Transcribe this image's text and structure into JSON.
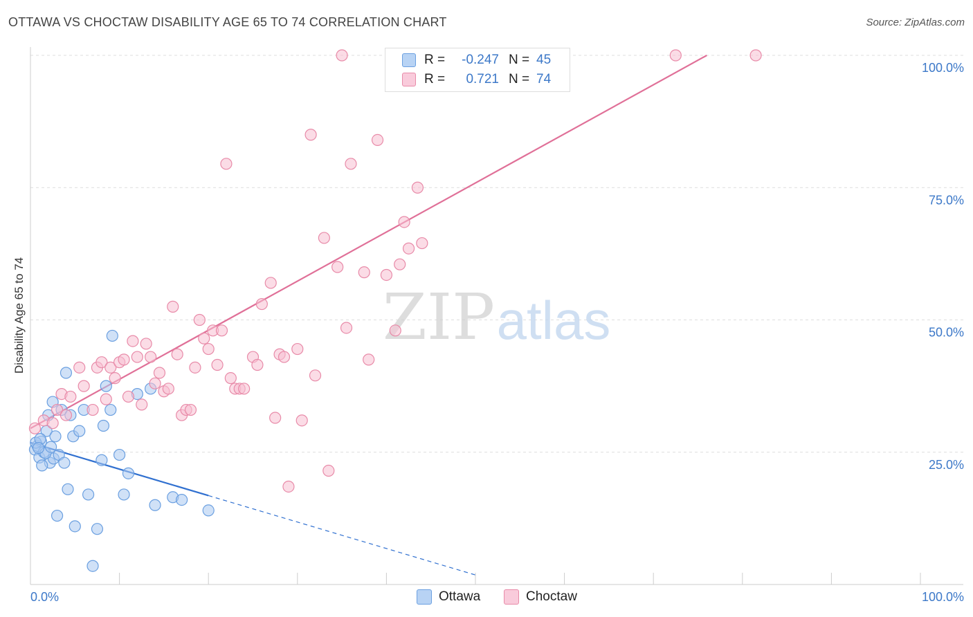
{
  "title": "OTTAWA VS CHOCTAW DISABILITY AGE 65 TO 74 CORRELATION CHART",
  "source": "Source: ZipAtlas.com",
  "watermark": {
    "zip": "ZIP",
    "atlas": "atlas"
  },
  "legend": {
    "rows": [
      {
        "r_label": "R =",
        "r_value": "-0.247",
        "n_label": "N =",
        "n_value": "45"
      },
      {
        "r_label": "R =",
        "r_value": "0.721",
        "n_label": "N =",
        "n_value": "74"
      }
    ]
  },
  "bottom_legend": {
    "ottawa": "Ottawa",
    "choctaw": "Choctaw"
  },
  "colors": {
    "ottawa_fill": "#a9c8f0",
    "ottawa_stroke": "#6a9fe0",
    "ottawa_line": "#3070d0",
    "choctaw_fill": "#f7c0d2",
    "choctaw_stroke": "#e88aa8",
    "choctaw_line": "#e07098",
    "tick_text": "#3c78c8",
    "grid": "#dddddd"
  },
  "chart_data": {
    "type": "scatter",
    "title": "OTTAWA VS CHOCTAW DISABILITY AGE 65 TO 74 CORRELATION CHART",
    "xlabel": "",
    "ylabel": "Disability Age 65 to 74",
    "xlim": [
      0,
      100
    ],
    "ylim": [
      0,
      100
    ],
    "x_tick_labels": [
      {
        "value": 0,
        "label": "0.0%"
      },
      {
        "value": 100,
        "label": "100.0%"
      }
    ],
    "y_tick_labels": [
      {
        "value": 25,
        "label": "25.0%"
      },
      {
        "value": 50,
        "label": "50.0%"
      },
      {
        "value": 75,
        "label": "75.0%"
      },
      {
        "value": 100,
        "label": "100.0%"
      }
    ],
    "series": [
      {
        "name": "Ottawa",
        "R": -0.247,
        "N": 45,
        "trend": {
          "x0": 0,
          "y0": 26.8,
          "x1": 20,
          "y1": 16.8,
          "dashed_to_x": 50
        },
        "points": [
          [
            0.5,
            25.5
          ],
          [
            0.8,
            26.2
          ],
          [
            1.0,
            24.0
          ],
          [
            1.2,
            27.0
          ],
          [
            1.5,
            25.0
          ],
          [
            1.8,
            29.0
          ],
          [
            2.0,
            32.0
          ],
          [
            2.2,
            23.0
          ],
          [
            2.5,
            34.5
          ],
          [
            2.6,
            23.8
          ],
          [
            2.8,
            28.0
          ],
          [
            3.0,
            13.0
          ],
          [
            3.2,
            24.5
          ],
          [
            3.5,
            33.0
          ],
          [
            3.8,
            23.0
          ],
          [
            4.0,
            40.0
          ],
          [
            4.2,
            18.0
          ],
          [
            4.5,
            32.0
          ],
          [
            4.8,
            28.0
          ],
          [
            5.0,
            11.0
          ],
          [
            5.5,
            29.0
          ],
          [
            6.0,
            33.0
          ],
          [
            6.5,
            17.0
          ],
          [
            7.0,
            3.5
          ],
          [
            7.5,
            10.5
          ],
          [
            8.0,
            23.5
          ],
          [
            8.2,
            30.0
          ],
          [
            8.5,
            37.5
          ],
          [
            9.0,
            33.0
          ],
          [
            9.2,
            47.0
          ],
          [
            10.0,
            24.5
          ],
          [
            10.5,
            17.0
          ],
          [
            11.0,
            21.0
          ],
          [
            12.0,
            36.0
          ],
          [
            13.5,
            37.0
          ],
          [
            14.0,
            15.0
          ],
          [
            16.0,
            16.5
          ],
          [
            17.0,
            16.0
          ],
          [
            20.0,
            14.0
          ],
          [
            1.3,
            22.5
          ],
          [
            1.7,
            24.8
          ],
          [
            0.6,
            26.8
          ],
          [
            2.3,
            26.0
          ],
          [
            1.1,
            27.5
          ],
          [
            0.9,
            25.8
          ]
        ]
      },
      {
        "name": "Choctaw",
        "R": 0.721,
        "N": 74,
        "trend": {
          "x0": 0,
          "y0": 29.5,
          "x1": 76,
          "y1": 100
        },
        "points": [
          [
            0.5,
            29.5
          ],
          [
            1.5,
            31.0
          ],
          [
            2.5,
            30.5
          ],
          [
            3.0,
            33.0
          ],
          [
            3.5,
            36.0
          ],
          [
            4.0,
            32.0
          ],
          [
            4.5,
            35.5
          ],
          [
            5.5,
            41.0
          ],
          [
            6.0,
            37.5
          ],
          [
            7.0,
            33.0
          ],
          [
            7.5,
            41.0
          ],
          [
            8.0,
            42.0
          ],
          [
            8.5,
            35.0
          ],
          [
            9.0,
            41.0
          ],
          [
            9.5,
            39.0
          ],
          [
            10.0,
            42.0
          ],
          [
            10.5,
            42.5
          ],
          [
            11.0,
            35.5
          ],
          [
            11.5,
            46.0
          ],
          [
            12.0,
            43.0
          ],
          [
            12.5,
            34.0
          ],
          [
            13.0,
            45.5
          ],
          [
            13.5,
            43.0
          ],
          [
            14.0,
            38.0
          ],
          [
            14.5,
            40.0
          ],
          [
            15.0,
            36.5
          ],
          [
            15.5,
            37.0
          ],
          [
            16.0,
            52.5
          ],
          [
            16.5,
            43.5
          ],
          [
            17.0,
            32.0
          ],
          [
            17.5,
            33.0
          ],
          [
            18.0,
            33.0
          ],
          [
            18.5,
            41.0
          ],
          [
            19.0,
            50.0
          ],
          [
            19.5,
            46.5
          ],
          [
            20.0,
            44.5
          ],
          [
            20.5,
            48.0
          ],
          [
            21.0,
            41.5
          ],
          [
            21.5,
            48.0
          ],
          [
            22.0,
            79.5
          ],
          [
            22.5,
            39.0
          ],
          [
            23.0,
            37.0
          ],
          [
            23.5,
            37.0
          ],
          [
            24.0,
            37.0
          ],
          [
            25.0,
            43.0
          ],
          [
            25.5,
            41.5
          ],
          [
            26.0,
            53.0
          ],
          [
            27.0,
            57.0
          ],
          [
            27.5,
            31.5
          ],
          [
            28.0,
            43.5
          ],
          [
            28.5,
            43.0
          ],
          [
            29.0,
            18.5
          ],
          [
            30.0,
            44.5
          ],
          [
            30.5,
            31.0
          ],
          [
            31.5,
            85.0
          ],
          [
            32.0,
            39.5
          ],
          [
            33.0,
            65.5
          ],
          [
            33.5,
            21.5
          ],
          [
            34.5,
            60.0
          ],
          [
            35.0,
            100.0
          ],
          [
            35.5,
            48.5
          ],
          [
            36.0,
            79.5
          ],
          [
            37.5,
            59.0
          ],
          [
            38.0,
            42.5
          ],
          [
            39.0,
            84.0
          ],
          [
            40.0,
            58.5
          ],
          [
            41.0,
            48.0
          ],
          [
            41.5,
            60.5
          ],
          [
            42.0,
            68.5
          ],
          [
            42.5,
            63.5
          ],
          [
            43.5,
            75.0
          ],
          [
            44.0,
            64.5
          ],
          [
            72.5,
            100.0
          ],
          [
            81.5,
            100.0
          ]
        ]
      }
    ]
  }
}
